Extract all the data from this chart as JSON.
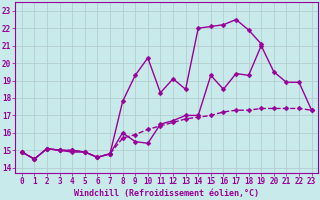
{
  "xlabel": "Windchill (Refroidissement éolien,°C)",
  "background_color": "#c8eaea",
  "line_color": "#990099",
  "grid_color": "#b0c8c8",
  "x_ticks": [
    0,
    1,
    2,
    3,
    4,
    5,
    6,
    7,
    8,
    9,
    10,
    11,
    12,
    13,
    14,
    15,
    16,
    17,
    18,
    19,
    20,
    21,
    22,
    23
  ],
  "y_ticks": [
    14,
    15,
    16,
    17,
    18,
    19,
    20,
    21,
    22,
    23
  ],
  "ylim": [
    13.7,
    23.5
  ],
  "xlim": [
    -0.5,
    23.5
  ],
  "line1_x": [
    0,
    1,
    2,
    3,
    4,
    5,
    6,
    7,
    8,
    9,
    10,
    11,
    12,
    13,
    14,
    15,
    16,
    17,
    18,
    19,
    20,
    21,
    22,
    23
  ],
  "line1_y": [
    14.9,
    14.5,
    15.1,
    15.0,
    15.0,
    14.9,
    14.6,
    14.8,
    15.7,
    15.9,
    16.2,
    16.4,
    16.6,
    16.8,
    16.9,
    17.0,
    17.2,
    17.3,
    17.3,
    17.4,
    17.4,
    17.4,
    17.4,
    17.3
  ],
  "line2_x": [
    0,
    1,
    2,
    3,
    4,
    5,
    6,
    7,
    8,
    9,
    10,
    11,
    12,
    13,
    14,
    15,
    16,
    17,
    18,
    19,
    20,
    21,
    22,
    23
  ],
  "line2_y": [
    14.9,
    14.5,
    15.1,
    15.0,
    14.9,
    14.9,
    14.6,
    14.8,
    16.0,
    15.5,
    15.4,
    16.5,
    16.7,
    17.0,
    17.0,
    19.3,
    18.5,
    19.4,
    19.3,
    21.0,
    19.5,
    18.9,
    18.9,
    17.3
  ],
  "line3_x": [
    0,
    1,
    2,
    3,
    4,
    5,
    6,
    7,
    8,
    9,
    10,
    11,
    12,
    13,
    14,
    15,
    16,
    17,
    18,
    19,
    20,
    21,
    22,
    23
  ],
  "line3_y": [
    14.9,
    14.5,
    15.1,
    15.0,
    15.0,
    14.9,
    14.6,
    14.8,
    17.8,
    19.3,
    20.3,
    18.3,
    19.1,
    18.5,
    22.0,
    22.1,
    22.2,
    22.5,
    21.9,
    21.1,
    null,
    null,
    null,
    null
  ],
  "marker_size": 2.5,
  "line_width": 1.0,
  "tick_fontsize": 5.5,
  "xlabel_fontsize": 6.0
}
